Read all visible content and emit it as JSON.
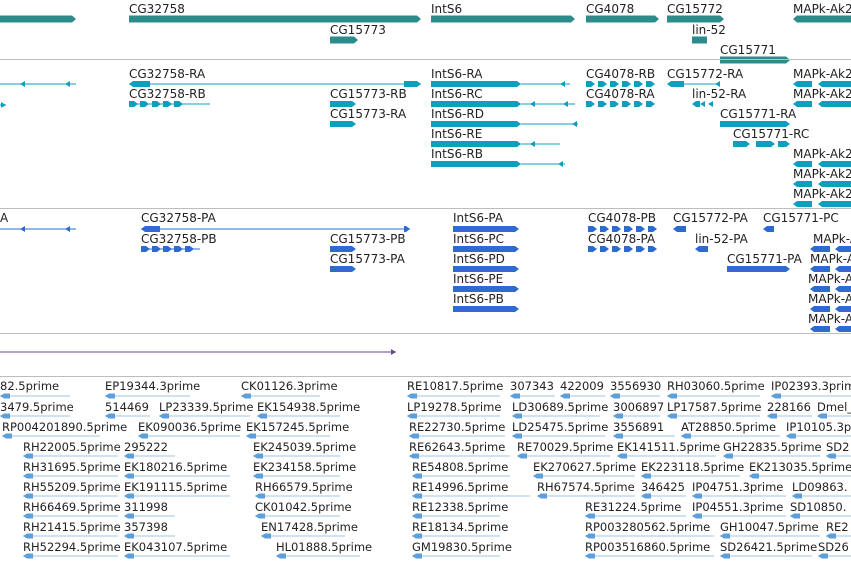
{
  "colors": {
    "gene": "#2e8b8b",
    "transcript": "#0e9fbf",
    "protein": "#2e6bcf",
    "est": "#5d9fd8",
    "misc": "#6a4a8a"
  },
  "gene_track": {
    "labels": [
      "CG32758",
      "CG15773",
      "IntS6",
      "CG4078",
      "CG15772",
      "lin-52",
      "CG15771",
      "MAPk-Ak2"
    ]
  },
  "transcript_track": {
    "labels": [
      "CG32758-RA",
      "CG32758-RB",
      "CG15773-RB",
      "CG15773-RA",
      "IntS6-RA",
      "IntS6-RC",
      "IntS6-RD",
      "IntS6-RE",
      "IntS6-RB",
      "CG4078-RB",
      "CG4078-RA",
      "CG15772-RA",
      "lin-52-RA",
      "CG15771-RA",
      "CG15771-RC",
      "MAPk-Ak2",
      "MAPk-Ak2",
      "MAPk-Ak2",
      "MAPk-Ak2",
      "MAPk-Ak2"
    ]
  },
  "protein_track": {
    "labels": [
      "A",
      "CG32758-PA",
      "CG32758-PB",
      "CG15773-PB",
      "CG15773-PA",
      "IntS6-PA",
      "IntS6-PC",
      "IntS6-PD",
      "IntS6-PE",
      "IntS6-PB",
      "CG4078-PB",
      "CG4078-PA",
      "CG15772-PA",
      "CG15771-PC",
      "lin-52-PA",
      "CG15771-PA",
      "MAPk-A",
      "MAPk-A",
      "MAPk-A",
      "MAPk-A",
      "MAPk-A"
    ]
  },
  "est_track": {
    "labels": [
      "82.5prime",
      "EP19344.3prime",
      "CK01126.3prime",
      "RE10817.5prime",
      "307343",
      "422009",
      "3556930",
      "RH03060.5prime",
      "IP02393.3prime",
      "3479.5prime",
      "514469",
      "LP23339.5prime",
      "EK154938.5prime",
      "LP19278.5prime",
      "LD30689.5prime",
      "3006897",
      "LP17587.5prime",
      "228166",
      "Dmel_",
      "RP004201890.5prime",
      "EK090036.5prime",
      "EK157245.5prime",
      "RE22730.5prime",
      "LD25475.5prime",
      "3556891",
      "AT28850.5prime",
      "IP10105.3p",
      "RH22005.5prime",
      "295222",
      "EK245039.5prime",
      "RE62643.5prime",
      "RE70029.5prime",
      "EK141511.5prime",
      "GH22835.5prime",
      "SD2",
      "RH31695.5prime",
      "EK180216.5prime",
      "EK234158.5prime",
      "RE54808.5prime",
      "EK270627.5prime",
      "EK223118.5prime",
      "EK213035.5prime",
      "RH55209.5prime",
      "EK191115.5prime",
      "RH66579.5prime",
      "RE14996.5prime",
      "RH67574.5prime",
      "346425",
      "IP04751.3prime",
      "LD09863.",
      "RH66469.5prime",
      "311998",
      "CK01042.5prime",
      "RE12338.5prime",
      "RE31224.5prime",
      "IP04551.3prime",
      "SD10850.",
      "RH21415.5prime",
      "357398",
      "EN17428.5prime",
      "RE18134.5prime",
      "RP003280562.5prime",
      "GH10047.5prime",
      "RE2",
      "RH52294.5prime",
      "EK043107.5prime",
      "HL01888.5prime",
      "GM19830.5prime",
      "RP003516860.5prime",
      "SD26421.5prime",
      "SD26"
    ]
  }
}
